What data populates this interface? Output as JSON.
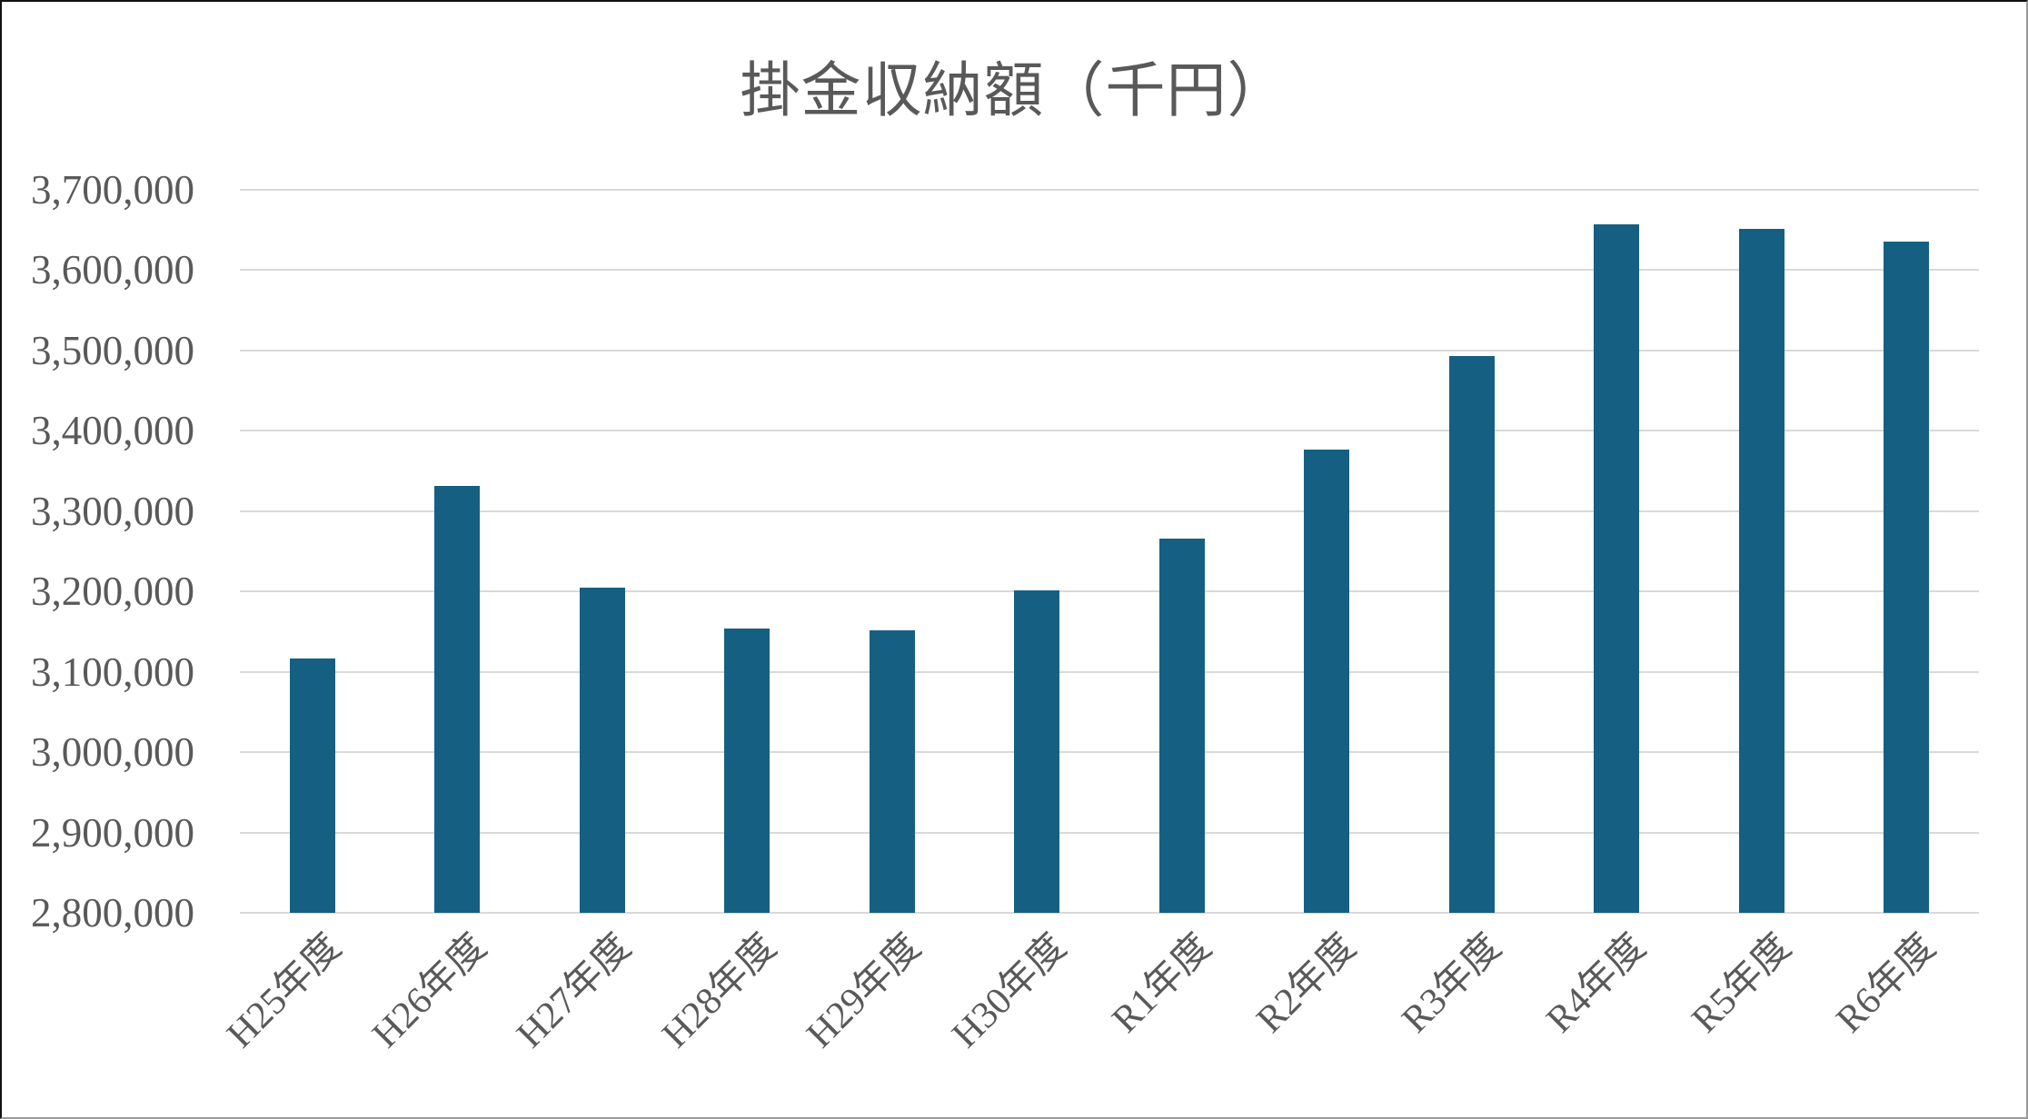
{
  "chart_data": {
    "type": "bar",
    "title": "掛金収納額（千円）",
    "categories": [
      "H25年度",
      "H26年度",
      "H27年度",
      "H28年度",
      "H29年度",
      "H30年度",
      "R1年度",
      "R2年度",
      "R3年度",
      "R4年度",
      "R5年度",
      "R6年度"
    ],
    "values": [
      3117000,
      3331000,
      3205000,
      3154000,
      3152000,
      3201000,
      3266000,
      3377000,
      3493000,
      3657000,
      3651000,
      3636000
    ],
    "series_name": "掛金収納額",
    "xlabel": "",
    "ylabel": "",
    "ylim": [
      2800000,
      3700000
    ],
    "ytick_step": 100000,
    "ytick_labels": [
      "3,700,000",
      "3,600,000",
      "3,500,000",
      "3,400,000",
      "3,300,000",
      "3,200,000",
      "3,100,000",
      "3,000,000",
      "2,900,000",
      "2,800,000"
    ],
    "grid": "horizontal",
    "legend": "none",
    "colors": {
      "bar": "#156082",
      "gridline": "#D9D9D9",
      "text": "#595959",
      "background": "#FFFFFF",
      "frame": "#111111"
    }
  }
}
